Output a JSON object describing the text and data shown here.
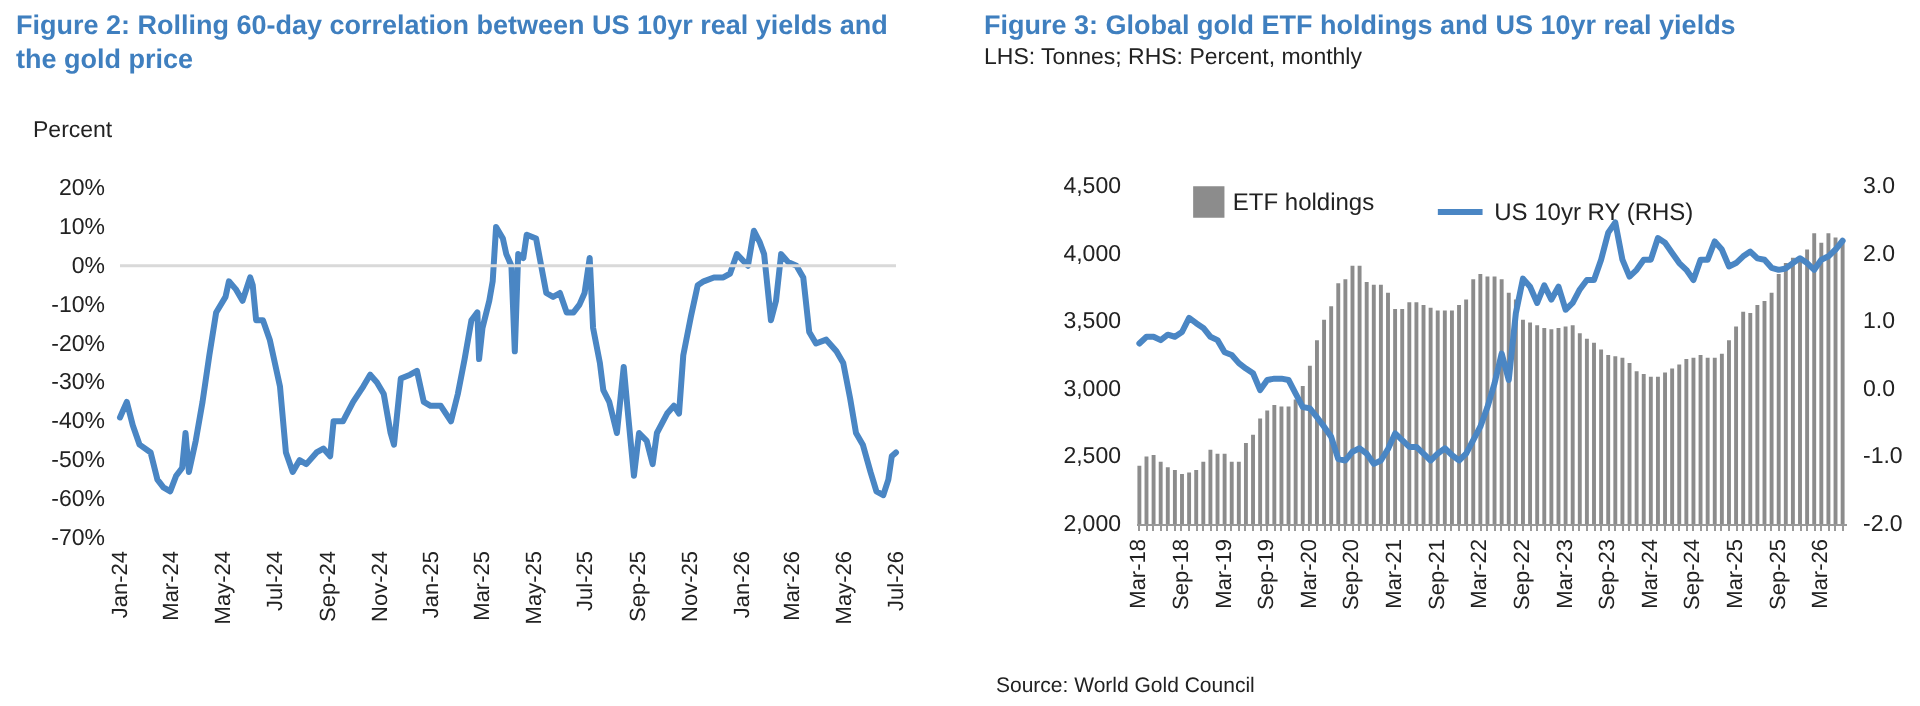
{
  "chart_data": [
    {
      "type": "line",
      "title": "Figure 2: Rolling 60-day correlation between US 10yr real yields and the gold price",
      "ylabel": "Percent",
      "x": [
        "2024-01-01",
        "2024-01-09",
        "2024-01-16",
        "2024-01-24",
        "2024-02-06",
        "2024-02-14",
        "2024-02-21",
        "2024-02-29",
        "2024-03-07",
        "2024-03-14",
        "2024-03-18",
        "2024-03-22",
        "2024-03-30",
        "2024-04-07",
        "2024-04-15",
        "2024-04-23",
        "2024-05-04",
        "2024-05-08",
        "2024-05-16",
        "2024-05-24",
        "2024-06-02",
        "2024-06-05",
        "2024-06-09",
        "2024-06-17",
        "2024-06-25",
        "2024-07-07",
        "2024-07-14",
        "2024-07-22",
        "2024-07-30",
        "2024-08-07",
        "2024-08-19",
        "2024-08-27",
        "2024-09-04",
        "2024-09-08",
        "2024-09-19",
        "2024-10-01",
        "2024-10-13",
        "2024-10-21",
        "2024-10-29",
        "2024-11-06",
        "2024-11-14",
        "2024-11-18",
        "2024-11-26",
        "2024-12-07",
        "2024-12-15",
        "2024-12-23",
        "2024-12-31",
        "2025-01-12",
        "2025-01-24",
        "2025-02-01",
        "2025-02-09",
        "2025-02-17",
        "2025-02-24",
        "2025-02-26",
        "2025-03-02",
        "2025-03-10",
        "2025-03-14",
        "2025-03-18",
        "2025-03-26",
        "2025-03-30",
        "2025-04-05",
        "2025-04-09",
        "2025-04-13",
        "2025-04-19",
        "2025-04-23",
        "2025-05-04",
        "2025-05-16",
        "2025-05-24",
        "2025-06-01",
        "2025-06-09",
        "2025-06-17",
        "2025-06-24",
        "2025-06-30",
        "2025-07-06",
        "2025-07-10",
        "2025-07-18",
        "2025-07-22",
        "2025-07-29",
        "2025-08-07",
        "2025-08-15",
        "2025-08-20",
        "2025-08-27",
        "2025-09-02",
        "2025-09-11",
        "2025-09-18",
        "2025-09-23",
        "2025-10-05",
        "2025-10-13",
        "2025-10-19",
        "2025-10-24",
        "2025-11-02",
        "2025-11-10",
        "2025-11-17",
        "2025-11-29",
        "2025-12-10",
        "2025-12-18",
        "2025-12-26",
        "2026-01-08",
        "2026-01-15",
        "2026-01-22",
        "2026-01-27",
        "2026-02-04",
        "2026-02-10",
        "2026-02-16",
        "2026-02-24",
        "2026-03-06",
        "2026-03-14",
        "2026-03-21",
        "2026-03-29",
        "2026-04-10",
        "2026-04-22",
        "2026-04-30",
        "2026-05-08",
        "2026-05-15",
        "2026-05-23",
        "2026-06-01",
        "2026-06-08",
        "2026-06-16",
        "2026-06-22",
        "2026-06-26",
        "2026-07-01"
      ],
      "series": [
        {
          "color": "#4a86c4",
          "values": [
            -39,
            -35,
            -41,
            -46,
            -48,
            -55,
            -57,
            -58,
            -54,
            -52,
            -43,
            -53,
            -45,
            -35,
            -23,
            -12,
            -8,
            -4,
            -6,
            -9,
            -3,
            -5,
            -14,
            -14,
            -19,
            -31,
            -48,
            -53,
            -50,
            -51,
            -48,
            -47,
            -49,
            -40,
            -40,
            -35,
            -31,
            -28,
            -30,
            -33,
            -43,
            -46,
            -29,
            -28,
            -27,
            -35,
            -36,
            -36,
            -40,
            -33,
            -24,
            -14,
            -12,
            -24,
            -16,
            -9,
            -4,
            10,
            7,
            3,
            0,
            -22,
            3,
            2,
            8,
            7,
            -7,
            -8,
            -7,
            -12,
            -12,
            -10,
            -7,
            2,
            -16,
            -25,
            -32,
            -35,
            -43,
            -26,
            -38,
            -54,
            -43,
            -45,
            -51,
            -43,
            -38,
            -36,
            -38,
            -23,
            -13,
            -5,
            -4,
            -3,
            -3,
            -2,
            3,
            0,
            9,
            6,
            3,
            -14,
            -9,
            3,
            1,
            0,
            -3,
            -17,
            -20,
            -19,
            -22,
            -25,
            -34,
            -43,
            -46,
            -53,
            -58,
            -59,
            -55,
            -49,
            -48
          ]
        }
      ],
      "xlim": [
        "2024-01-01",
        "2026-07-01"
      ],
      "xticks": [
        {
          "value": "2024-01-01",
          "label": "Jan-24"
        },
        {
          "value": "2024-03-01",
          "label": "Mar-24"
        },
        {
          "value": "2024-05-01",
          "label": "May-24"
        },
        {
          "value": "2024-07-01",
          "label": "Jul-24"
        },
        {
          "value": "2024-09-01",
          "label": "Sep-24"
        },
        {
          "value": "2024-11-01",
          "label": "Nov-24"
        },
        {
          "value": "2025-01-01",
          "label": "Jan-25"
        },
        {
          "value": "2025-03-01",
          "label": "Mar-25"
        },
        {
          "value": "2025-05-01",
          "label": "May-25"
        },
        {
          "value": "2025-07-01",
          "label": "Jul-25"
        },
        {
          "value": "2025-09-01",
          "label": "Sep-25"
        },
        {
          "value": "2025-11-01",
          "label": "Nov-25"
        },
        {
          "value": "2026-01-01",
          "label": "Jan-26"
        },
        {
          "value": "2026-03-01",
          "label": "Mar-26"
        },
        {
          "value": "2026-05-01",
          "label": "May-26"
        },
        {
          "value": "2026-07-01",
          "label": "Jul-26"
        }
      ],
      "ylim": [
        -70,
        20
      ],
      "yticks": [
        {
          "value": 20,
          "label": "20%"
        },
        {
          "value": 10,
          "label": "10%"
        },
        {
          "value": 0,
          "label": "0%"
        },
        {
          "value": -10,
          "label": "-10%"
        },
        {
          "value": -20,
          "label": "-20%"
        },
        {
          "value": -30,
          "label": "-30%"
        },
        {
          "value": -40,
          "label": "-40%"
        },
        {
          "value": -50,
          "label": "-50%"
        },
        {
          "value": -60,
          "label": "-60%"
        },
        {
          "value": -70,
          "label": "-70%"
        }
      ],
      "ref_lines": [
        {
          "axis": "y",
          "value": 0,
          "color": "#d9d9d9"
        }
      ]
    },
    {
      "type": "bar",
      "title": "Figure 3: Global gold ETF holdings and US 10yr real yields",
      "subtitle": "LHS: Tonnes; RHS: Percent, monthly",
      "categories": [
        "Mar-18",
        null,
        null,
        null,
        null,
        null,
        "Sep-18",
        null,
        null,
        null,
        null,
        null,
        "Mar-19",
        null,
        null,
        null,
        null,
        null,
        "Sep-19",
        null,
        null,
        null,
        null,
        null,
        "Mar-20",
        null,
        null,
        null,
        null,
        null,
        "Sep-20",
        null,
        null,
        null,
        null,
        null,
        "Mar-21",
        null,
        null,
        null,
        null,
        null,
        "Sep-21",
        null,
        null,
        null,
        null,
        null,
        "Mar-22",
        null,
        null,
        null,
        null,
        null,
        "Sep-22",
        null,
        null,
        null,
        null,
        null,
        "Mar-23",
        null,
        null,
        null,
        null,
        null,
        "Sep-23",
        null,
        null,
        null,
        null,
        null,
        "Mar-24",
        null,
        null,
        null,
        null,
        null,
        "Sep-24",
        null,
        null,
        null,
        null,
        null,
        "Mar-25",
        null,
        null,
        null,
        null,
        null,
        "Sep-25",
        null,
        null,
        null,
        null,
        null,
        "Mar-26",
        null,
        null,
        null
      ],
      "series": [
        {
          "name": "ETF holdings",
          "color": "#8c8c8c",
          "values": [
            2430,
            2500,
            2510,
            2460,
            2420,
            2400,
            2370,
            2380,
            2400,
            2460,
            2550,
            2520,
            2520,
            2460,
            2460,
            2600,
            2660,
            2780,
            2840,
            2880,
            2870,
            2870,
            2920,
            3020,
            3170,
            3360,
            3510,
            3610,
            3780,
            3810,
            3910,
            3910,
            3790,
            3770,
            3770,
            3710,
            3590,
            3590,
            3640,
            3640,
            3620,
            3600,
            3580,
            3580,
            3580,
            3620,
            3660,
            3810,
            3850,
            3830,
            3830,
            3810,
            3710,
            3660,
            3510,
            3490,
            3470,
            3450,
            3440,
            3450,
            3460,
            3470,
            3410,
            3370,
            3340,
            3290,
            3250,
            3240,
            3230,
            3190,
            3130,
            3110,
            3090,
            3090,
            3120,
            3150,
            3180,
            3220,
            3230,
            3250,
            3230,
            3230,
            3260,
            3360,
            3460,
            3570,
            3560,
            3620,
            3650,
            3710,
            3850,
            3930,
            3970,
            3980,
            4030,
            4150,
            4080,
            4150,
            4120,
            4110
          ]
        },
        {
          "type": "line",
          "name": "US 10yr RY (RHS)",
          "color": "#4a86c4",
          "axis": "y2",
          "values": [
            0.67,
            0.77,
            0.77,
            0.72,
            0.8,
            0.77,
            0.84,
            1.05,
            0.97,
            0.9,
            0.77,
            0.72,
            0.54,
            0.5,
            0.38,
            0.3,
            0.23,
            -0.02,
            0.13,
            0.15,
            0.15,
            0.13,
            -0.07,
            -0.27,
            -0.29,
            -0.42,
            -0.56,
            -0.71,
            -1.04,
            -1.06,
            -0.93,
            -0.88,
            -0.96,
            -1.11,
            -1.06,
            -0.89,
            -0.66,
            -0.76,
            -0.86,
            -0.86,
            -0.96,
            -1.06,
            -0.96,
            -0.88,
            -0.98,
            -1.06,
            -0.96,
            -0.76,
            -0.56,
            -0.27,
            0.08,
            0.52,
            0.13,
            1.12,
            1.63,
            1.51,
            1.27,
            1.53,
            1.32,
            1.51,
            1.17,
            1.27,
            1.47,
            1.61,
            1.61,
            1.91,
            2.31,
            2.46,
            1.91,
            1.66,
            1.76,
            1.91,
            1.91,
            2.23,
            2.16,
            2.01,
            1.86,
            1.76,
            1.61,
            1.91,
            1.91,
            2.18,
            2.06,
            1.81,
            1.86,
            1.96,
            2.03,
            1.93,
            1.91,
            1.79,
            1.76,
            1.78,
            1.86,
            1.93,
            1.86,
            1.76,
            1.91,
            1.96,
            2.06,
            2.19
          ]
        }
      ],
      "ylim": [
        2000,
        4500
      ],
      "yticks": [
        {
          "value": 2000,
          "label": "2,000"
        },
        {
          "value": 2500,
          "label": "2,500"
        },
        {
          "value": 3000,
          "label": "3,000"
        },
        {
          "value": 3500,
          "label": "3,500"
        },
        {
          "value": 4000,
          "label": "4,000"
        },
        {
          "value": 4500,
          "label": "4,500"
        }
      ],
      "y2lim": [
        -2,
        3
      ],
      "y2ticks": [
        {
          "value": -2,
          "label": "-2.0"
        },
        {
          "value": -1,
          "label": "-1.0"
        },
        {
          "value": 0,
          "label": "0.0"
        },
        {
          "value": 1,
          "label": "1.0"
        },
        {
          "value": 2,
          "label": "2.0"
        },
        {
          "value": 3,
          "label": "3.0"
        }
      ],
      "legend": "top",
      "annotations": [
        "Source: World Gold Council"
      ]
    }
  ]
}
